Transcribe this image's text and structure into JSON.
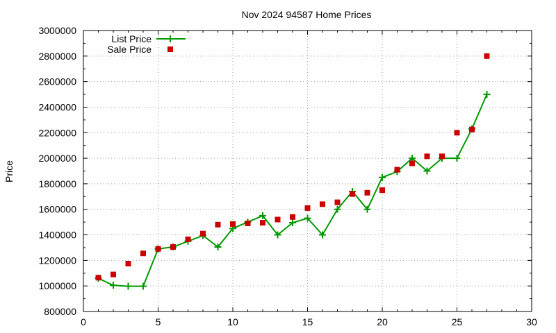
{
  "chart_data": {
    "type": "line",
    "title": "Nov 2024 94587 Home Prices",
    "xlabel": "",
    "ylabel": "Price",
    "xlim": [
      0,
      30
    ],
    "ylim": [
      800000,
      3000000
    ],
    "xticks": [
      0,
      5,
      10,
      15,
      20,
      25,
      30
    ],
    "yticks": [
      800000,
      1000000,
      1200000,
      1400000,
      1600000,
      1800000,
      2000000,
      2200000,
      2400000,
      2600000,
      2800000,
      3000000
    ],
    "grid": true,
    "legend_position": "top-left",
    "series": [
      {
        "name": "List Price",
        "style": "line-with-plus-markers",
        "color": "#009900",
        "x": [
          1,
          2,
          3,
          4,
          5,
          6,
          7,
          8,
          9,
          10,
          11,
          12,
          13,
          14,
          15,
          16,
          17,
          18,
          19,
          20,
          21,
          22,
          23,
          24,
          25,
          26,
          27
        ],
        "y": [
          1060000,
          1005000,
          998000,
          998000,
          1290000,
          1305000,
          1350000,
          1395000,
          1305000,
          1450000,
          1500000,
          1550000,
          1400000,
          1495000,
          1530000,
          1400000,
          1600000,
          1740000,
          1600000,
          1850000,
          1895000,
          2000000,
          1900000,
          2000000,
          2000000,
          2230000,
          2500000
        ]
      },
      {
        "name": "Sale Price",
        "style": "square-markers",
        "color": "#cc0000",
        "x": [
          1,
          2,
          3,
          4,
          5,
          6,
          7,
          8,
          9,
          10,
          11,
          12,
          13,
          14,
          15,
          16,
          17,
          18,
          19,
          20,
          21,
          22,
          23,
          24,
          25,
          26,
          27
        ],
        "y": [
          1065000,
          1090000,
          1175000,
          1255000,
          1290000,
          1305000,
          1365000,
          1410000,
          1480000,
          1485000,
          1490000,
          1495000,
          1520000,
          1540000,
          1610000,
          1640000,
          1655000,
          1720000,
          1730000,
          1750000,
          1910000,
          1960000,
          2015000,
          2015000,
          2200000,
          2225000,
          2800000
        ]
      }
    ]
  }
}
